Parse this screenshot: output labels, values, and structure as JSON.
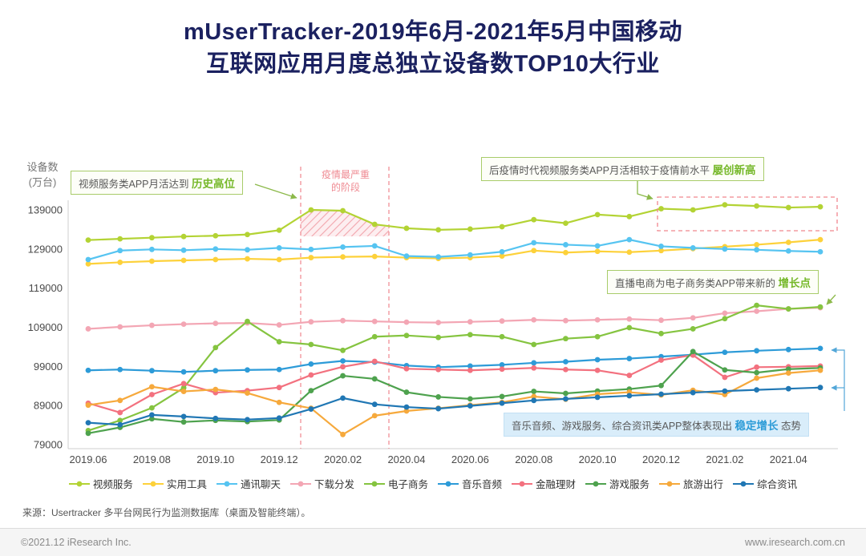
{
  "title": {
    "line1": "mUserTracker-2019年6月-2021年5月中国移动",
    "line2": "互联网应用月度总独立设备数TOP10大行业"
  },
  "y_axis": {
    "title_line1": "设备数",
    "title_line2": "(万台)",
    "ticks": [
      139000,
      129000,
      119000,
      109000,
      99000,
      89000,
      79000
    ]
  },
  "x_axis": {
    "visible_ticks": [
      "2019.06",
      "2019.08",
      "2019.10",
      "2019.12",
      "2020.02",
      "2020.04",
      "2020.06",
      "2020.08",
      "2020.10",
      "2020.12",
      "2021.02",
      "2021.04"
    ]
  },
  "chart_data": {
    "type": "line",
    "title": "mUserTracker-2019年6月-2021年5月中国移动互联网应用月度总独立设备数TOP10大行业",
    "ylabel": "设备数(万台)",
    "ylim": [
      79000,
      139000
    ],
    "grid": false,
    "legend_position": "bottom",
    "x": [
      "2019.06",
      "2019.07",
      "2019.08",
      "2019.09",
      "2019.10",
      "2019.11",
      "2019.12",
      "2020.01",
      "2020.02",
      "2020.03",
      "2020.04",
      "2020.05",
      "2020.06",
      "2020.07",
      "2020.08",
      "2020.09",
      "2020.10",
      "2020.11",
      "2020.12",
      "2021.01",
      "2021.02",
      "2021.03",
      "2021.04",
      "2021.05"
    ],
    "series": [
      {
        "name": "视频服务",
        "color": "#b3d334",
        "values": [
          131300,
          131600,
          131900,
          132200,
          132400,
          132700,
          133800,
          139000,
          138800,
          135300,
          134300,
          133900,
          134100,
          134700,
          136500,
          135600,
          137800,
          137300,
          139300,
          139000,
          140300,
          140000,
          139600,
          139800
        ]
      },
      {
        "name": "实用工具",
        "color": "#fdd13a",
        "values": [
          125200,
          125600,
          125900,
          126100,
          126300,
          126500,
          126300,
          126800,
          127000,
          127100,
          126800,
          126600,
          126800,
          127200,
          128600,
          128100,
          128400,
          128200,
          128600,
          129100,
          129600,
          130100,
          130700,
          131400
        ]
      },
      {
        "name": "通讯聊天",
        "color": "#56c4f1",
        "values": [
          126300,
          128600,
          128900,
          128700,
          129000,
          128800,
          129300,
          128900,
          129500,
          129800,
          127200,
          127000,
          127500,
          128300,
          130600,
          130100,
          129800,
          131400,
          129700,
          129300,
          129000,
          128800,
          128500,
          128300
        ]
      },
      {
        "name": "下载分发",
        "color": "#f3a6b4",
        "values": [
          108600,
          109100,
          109500,
          109800,
          110000,
          110100,
          109600,
          110400,
          110700,
          110500,
          110300,
          110200,
          110400,
          110600,
          110900,
          110700,
          110900,
          111100,
          110800,
          111400,
          112600,
          113100,
          113700,
          114000
        ]
      },
      {
        "name": "电子商务",
        "color": "#85c440",
        "values": [
          82600,
          85200,
          88400,
          93500,
          103800,
          110500,
          105300,
          104600,
          103100,
          106600,
          106900,
          106400,
          107100,
          106600,
          104600,
          106100,
          106600,
          108900,
          107400,
          108600,
          111200,
          114600,
          113700,
          114200
        ]
      },
      {
        "name": "音乐音频",
        "color": "#2d9bd8",
        "values": [
          98000,
          98200,
          97900,
          97600,
          97900,
          98100,
          98200,
          99600,
          100400,
          100100,
          99200,
          98800,
          99100,
          99400,
          99900,
          100200,
          100700,
          101000,
          101500,
          102000,
          102600,
          103000,
          103300,
          103600
        ]
      },
      {
        "name": "金融理财",
        "color": "#f3717f",
        "values": [
          89600,
          87200,
          91800,
          94600,
          92300,
          92800,
          93600,
          96800,
          98900,
          100300,
          98400,
          98200,
          98000,
          98300,
          98600,
          98200,
          98000,
          96700,
          100600,
          101900,
          96200,
          98800,
          98900,
          99100
        ]
      },
      {
        "name": "游戏服务",
        "color": "#4ea24e",
        "values": [
          81900,
          83400,
          85600,
          84800,
          85200,
          84900,
          85300,
          92800,
          96600,
          95800,
          92400,
          91200,
          90700,
          91300,
          92600,
          92100,
          92700,
          93200,
          94100,
          102800,
          98100,
          97400,
          98300,
          98600
        ]
      },
      {
        "name": "旅游出行",
        "color": "#f6a93c",
        "values": [
          89100,
          90300,
          93800,
          92600,
          93100,
          92200,
          89800,
          88300,
          81600,
          86400,
          87600,
          88300,
          89100,
          89800,
          91300,
          90600,
          91900,
          92400,
          91700,
          92900,
          91800,
          96000,
          97300,
          98000
        ]
      },
      {
        "name": "综合资讯",
        "color": "#2077b4",
        "values": [
          84600,
          84100,
          86600,
          86200,
          85700,
          85400,
          85800,
          88100,
          90900,
          89300,
          88600,
          88200,
          88900,
          89600,
          90300,
          90700,
          91100,
          91500,
          91900,
          92300,
          92700,
          93000,
          93300,
          93600
        ]
      }
    ]
  },
  "annotations": {
    "epidemic_period": {
      "line1": "疫情最严重",
      "line2": "的阶段",
      "x_range": [
        "2020.01",
        "2020.03"
      ]
    },
    "box_history_high": {
      "text": "视频服务类APP月活达到 ",
      "highlight": "历史高位"
    },
    "box_new_high": {
      "text": "后疫情时代视频服务类APP月活相较于疫情前水平 ",
      "highlight": "屡创新高"
    },
    "box_growth_point": {
      "text": "直播电商为电子商务类APP带来新的 ",
      "highlight": "增长点"
    },
    "box_stable_growth": {
      "text": "音乐音频、游戏服务、综合资讯类APP整体表现出 ",
      "highlight": "稳定增长",
      "suffix": " 态势"
    }
  },
  "colors": {
    "title": "#1b2160",
    "annotation_green": "#76b82a",
    "annotation_blue": "#2b9bd7",
    "epidemic_red": "#ef8a92",
    "dashed_red": "#f0868e"
  },
  "source": "来源：Usertracker 多平台网民行为监测数据库（桌面及智能终端）。",
  "footer": {
    "copyright": "©2021.12 iResearch Inc.",
    "website": "www.iresearch.com.cn"
  }
}
